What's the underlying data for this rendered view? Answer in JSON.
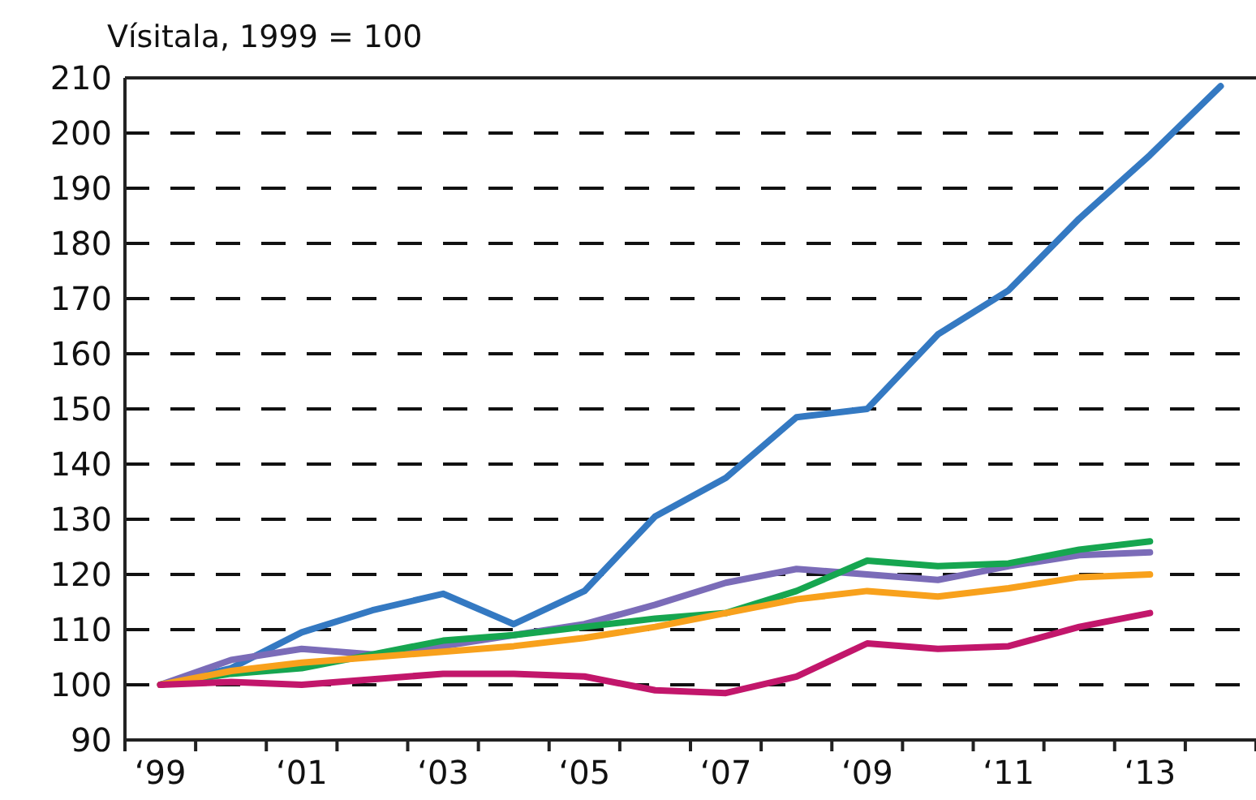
{
  "chart_data": {
    "type": "line",
    "title": "Vísitala, 1999 = 100",
    "categories": [
      "‘99",
      null,
      "‘01",
      null,
      "‘03",
      null,
      "‘05",
      null,
      "‘07",
      null,
      "‘09",
      null,
      "‘11",
      null,
      "‘13",
      null
    ],
    "ylim": [
      90,
      210
    ],
    "yticks": [
      90,
      100,
      110,
      120,
      130,
      140,
      150,
      160,
      170,
      180,
      190,
      200,
      210
    ],
    "grid": "y",
    "marker": "none",
    "line_style": "solid",
    "series": [
      {
        "color": "#3479c2",
        "values": [
          100,
          103,
          109.5,
          113.5,
          116.5,
          111,
          117,
          130.5,
          137.5,
          148.5,
          150,
          163.5,
          171.5,
          184.5,
          196,
          208.5
        ]
      },
      {
        "color": "#7b6cb8",
        "values": [
          100,
          104.5,
          106.5,
          105.5,
          107,
          109,
          111,
          114.5,
          118.5,
          121,
          120,
          119,
          121.5,
          123.5,
          124,
          null
        ]
      },
      {
        "color": "#16a650",
        "values": [
          100,
          102,
          103,
          105.5,
          108,
          109,
          110.5,
          112,
          113,
          117,
          122.5,
          121.5,
          122,
          124.5,
          126,
          null
        ]
      },
      {
        "color": "#f8a11c",
        "values": [
          100,
          102.5,
          104,
          105,
          106,
          107,
          108.5,
          110.5,
          113,
          115.5,
          117,
          116,
          117.5,
          119.5,
          120,
          null
        ]
      },
      {
        "color": "#c2166b",
        "values": [
          100,
          100.5,
          100,
          101,
          102,
          102,
          101.5,
          99,
          98.5,
          101.5,
          107.5,
          106.5,
          107,
          110.5,
          113,
          null
        ]
      }
    ]
  }
}
